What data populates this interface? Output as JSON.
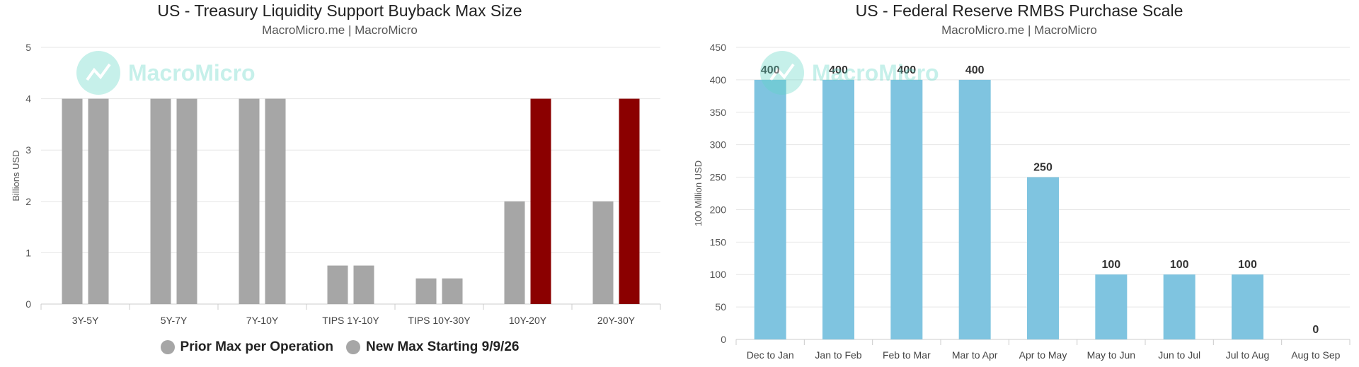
{
  "charts": [
    {
      "title": "US - Treasury Liquidity Support Buyback Max Size",
      "subtitle": "MacroMicro.me | MacroMicro",
      "watermark": "MacroMicro"
    },
    {
      "title": "US - Federal Reserve RMBS Purchase Scale",
      "subtitle": "MacroMicro.me | MacroMicro",
      "watermark": "MacroMicro"
    }
  ],
  "chart_data": [
    {
      "type": "bar",
      "title": "US - Treasury Liquidity Support Buyback Max Size",
      "ylabel": "Billions USD",
      "xlabel": "",
      "ylim": [
        0,
        5
      ],
      "yticks": [
        0,
        1,
        2,
        3,
        4,
        5
      ],
      "grid": true,
      "legend": "bottom",
      "categories": [
        "3Y-5Y",
        "5Y-7Y",
        "7Y-10Y",
        "TIPS 1Y-10Y",
        "TIPS 10Y-30Y",
        "10Y-20Y",
        "20Y-30Y"
      ],
      "series": [
        {
          "name": "Prior Max per Operation",
          "color": "#a6a6a6",
          "values": [
            4,
            4,
            4,
            0.75,
            0.5,
            2,
            2
          ]
        },
        {
          "name": "New Max Starting 9/9/26",
          "color": "#a6a6a6",
          "values": [
            4,
            4,
            4,
            0.75,
            0.5,
            4,
            4
          ],
          "highlight_color": "#8b0000",
          "highlight_indices": [
            5,
            6
          ]
        }
      ]
    },
    {
      "type": "bar",
      "title": "US - Federal Reserve RMBS Purchase Scale",
      "ylabel": "100 Million USD",
      "xlabel": "",
      "ylim": [
        0,
        450
      ],
      "yticks": [
        0,
        50,
        100,
        150,
        200,
        250,
        300,
        350,
        400,
        450
      ],
      "grid": true,
      "categories": [
        "Dec to Jan",
        "Jan to Feb",
        "Feb to Mar",
        "Mar to Apr",
        "Apr to May",
        "May to Jun",
        "Jun to Jul",
        "Jul to Aug",
        "Aug to Sep"
      ],
      "values": [
        400,
        400,
        400,
        400,
        250,
        100,
        100,
        100,
        0
      ],
      "color": "#7fc4e0",
      "data_labels": true
    }
  ]
}
